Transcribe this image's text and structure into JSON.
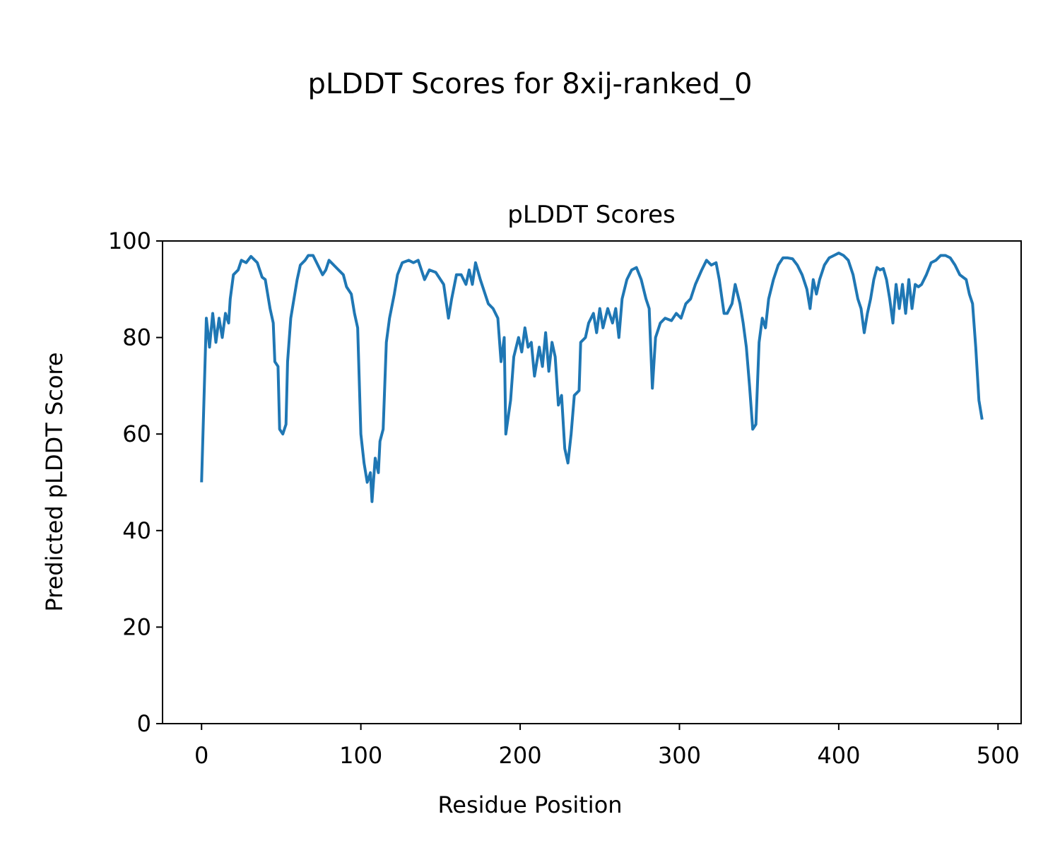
{
  "chart_data": {
    "type": "line",
    "suptitle": "pLDDT Scores for 8xij-ranked_0",
    "title": "pLDDT Scores",
    "xlabel": "Residue Position",
    "ylabel": "Predicted pLDDT Score",
    "xlim": [
      -24.5,
      514.5
    ],
    "ylim": [
      0,
      100
    ],
    "xticks": [
      0,
      100,
      200,
      300,
      400,
      500
    ],
    "yticks": [
      0,
      20,
      40,
      60,
      80,
      100
    ],
    "color": "#1f77b4",
    "x": [
      0,
      3,
      5,
      7,
      9,
      11,
      13,
      15,
      17,
      18,
      20,
      23,
      25,
      28,
      31,
      35,
      38,
      40,
      43,
      45,
      46,
      48,
      49,
      51,
      53,
      54,
      56,
      58,
      60,
      62,
      65,
      67,
      70,
      73,
      76,
      78,
      80,
      83,
      86,
      89,
      91,
      94,
      96,
      98,
      100,
      102,
      104,
      106,
      107,
      109,
      111,
      112,
      114,
      116,
      118,
      121,
      123,
      126,
      130,
      133,
      136,
      138,
      140,
      143,
      147,
      150,
      152,
      155,
      157,
      160,
      163,
      166,
      168,
      170,
      172,
      175,
      178,
      180,
      183,
      186,
      188,
      190,
      191,
      194,
      196,
      199,
      201,
      203,
      205,
      207,
      209,
      212,
      214,
      216,
      218,
      220,
      222,
      224,
      226,
      228,
      230,
      232,
      234,
      237,
      238,
      241,
      243,
      246,
      248,
      250,
      252,
      255,
      258,
      260,
      262,
      264,
      267,
      270,
      273,
      276,
      279,
      281,
      283,
      285,
      288,
      291,
      295,
      298,
      301,
      304,
      307,
      310,
      314,
      317,
      320,
      323,
      325,
      328,
      330,
      333,
      335,
      338,
      340,
      342,
      344,
      346,
      348,
      350,
      352,
      354,
      356,
      359,
      362,
      365,
      368,
      371,
      374,
      377,
      380,
      382,
      384,
      386,
      388,
      391,
      394,
      397,
      400,
      403,
      406,
      409,
      412,
      414,
      416,
      418,
      420,
      422,
      424,
      426,
      428,
      430,
      432,
      434,
      436,
      438,
      440,
      442,
      444,
      446,
      448,
      450,
      452,
      455,
      458,
      461,
      464,
      467,
      470,
      473,
      476,
      478,
      480,
      482,
      484,
      486,
      488,
      490
    ],
    "values": [
      50,
      84,
      78,
      85,
      79,
      84,
      80,
      85,
      83,
      88,
      93,
      94,
      96,
      95.5,
      96.8,
      95.5,
      92.5,
      92,
      86,
      83,
      75,
      74,
      61,
      60,
      62,
      75,
      84,
      88,
      92,
      95,
      96,
      97,
      97,
      95,
      93,
      94,
      96,
      95,
      94,
      93,
      90.5,
      89,
      85,
      82,
      60,
      54,
      50,
      52,
      46,
      55,
      52,
      58.5,
      61,
      79,
      84,
      89,
      93,
      95.5,
      96,
      95.5,
      96,
      94,
      92,
      94,
      93.5,
      92,
      91,
      84,
      88,
      93,
      93,
      91,
      94,
      91,
      95.5,
      92,
      89,
      87,
      86,
      84,
      75,
      80,
      60,
      67,
      76,
      80,
      77,
      82,
      78,
      79,
      72,
      78,
      74,
      81,
      73,
      79,
      76,
      66,
      68,
      57,
      54,
      60,
      68,
      69,
      79,
      80,
      83,
      85,
      81,
      86,
      82,
      86,
      83,
      86,
      80,
      88,
      92,
      94,
      94.5,
      92,
      88,
      86,
      69.5,
      80,
      83,
      84,
      83.5,
      85,
      84,
      87,
      88,
      91,
      94,
      96,
      95,
      95.5,
      92,
      85,
      85,
      87,
      91,
      87,
      83,
      78,
      70,
      61,
      62,
      79,
      84,
      82,
      88,
      92,
      95,
      96.5,
      96.5,
      96.3,
      95,
      93,
      90,
      86,
      92,
      89,
      92,
      95,
      96.5,
      97,
      97.5,
      97,
      96,
      93,
      88,
      86,
      81,
      85,
      88,
      92,
      94.5,
      94,
      94.3,
      92,
      88,
      83,
      91,
      86,
      91,
      85,
      92,
      86,
      91,
      90.5,
      91,
      93,
      95.5,
      96,
      97,
      97,
      96.5,
      95,
      93,
      92.5,
      92,
      89,
      87,
      78,
      67,
      63
    ]
  }
}
